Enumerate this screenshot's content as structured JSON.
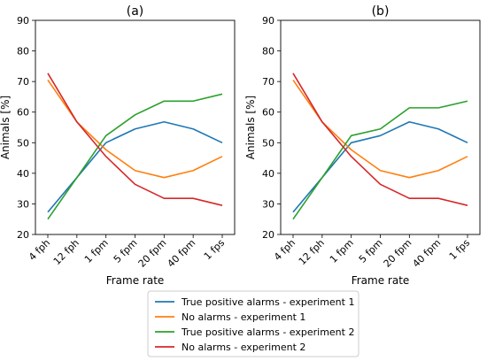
{
  "chart_data": [
    {
      "type": "line",
      "title": "(a)",
      "xlabel": "Frame rate",
      "ylabel": "Animals [%]",
      "categories": [
        "4 fph",
        "12 fph",
        "1 fpm",
        "5 fpm",
        "20 fpm",
        "40 fpm",
        "1 fps"
      ],
      "ylim": [
        20,
        90
      ],
      "yticks": [
        20,
        30,
        40,
        50,
        60,
        70,
        80,
        90
      ],
      "grid": false,
      "series": [
        {
          "name": "True positive alarms - experiment 1",
          "color": "#1f77b4",
          "values": [
            27.3,
            38.6,
            50.0,
            54.5,
            56.8,
            54.5,
            50.0
          ]
        },
        {
          "name": "No alarms - experiment 1",
          "color": "#ff7f0e",
          "values": [
            70.5,
            56.8,
            47.7,
            40.9,
            38.6,
            40.9,
            45.5
          ]
        },
        {
          "name": "True positive alarms - experiment 2",
          "color": "#2ca02c",
          "values": [
            25.0,
            38.6,
            52.3,
            59.1,
            63.6,
            63.6,
            65.9
          ]
        },
        {
          "name": "No alarms - experiment 2",
          "color": "#d62728",
          "values": [
            72.7,
            56.8,
            45.5,
            36.4,
            31.8,
            31.8,
            29.5
          ]
        }
      ]
    },
    {
      "type": "line",
      "title": "(b)",
      "xlabel": "Frame rate",
      "ylabel": "Animals [%]",
      "categories": [
        "4 fph",
        "12 fph",
        "1 fpm",
        "5 fpm",
        "20 fpm",
        "40 fpm",
        "1 fps"
      ],
      "ylim": [
        20,
        90
      ],
      "yticks": [
        20,
        30,
        40,
        50,
        60,
        70,
        80,
        90
      ],
      "grid": false,
      "series": [
        {
          "name": "True positive alarms - experiment 1",
          "color": "#1f77b4",
          "values": [
            27.3,
            38.6,
            50.0,
            52.3,
            56.8,
            54.5,
            50.0
          ]
        },
        {
          "name": "No alarms - experiment 1",
          "color": "#ff7f0e",
          "values": [
            70.5,
            56.8,
            47.7,
            40.9,
            38.6,
            40.9,
            45.5
          ]
        },
        {
          "name": "True positive alarms - experiment 2",
          "color": "#2ca02c",
          "values": [
            25.0,
            38.6,
            52.3,
            54.5,
            61.4,
            61.4,
            63.6
          ]
        },
        {
          "name": "No alarms - experiment 2",
          "color": "#d62728",
          "values": [
            72.7,
            56.8,
            45.5,
            36.4,
            31.8,
            31.8,
            29.5
          ]
        }
      ]
    }
  ],
  "legend": {
    "placement": "bottom-center",
    "entries": [
      {
        "label": "True positive alarms - experiment 1",
        "color": "#1f77b4"
      },
      {
        "label": "No alarms - experiment 1",
        "color": "#ff7f0e"
      },
      {
        "label": "True positive alarms - experiment 2",
        "color": "#2ca02c"
      },
      {
        "label": "No alarms - experiment 2",
        "color": "#d62728"
      }
    ]
  }
}
